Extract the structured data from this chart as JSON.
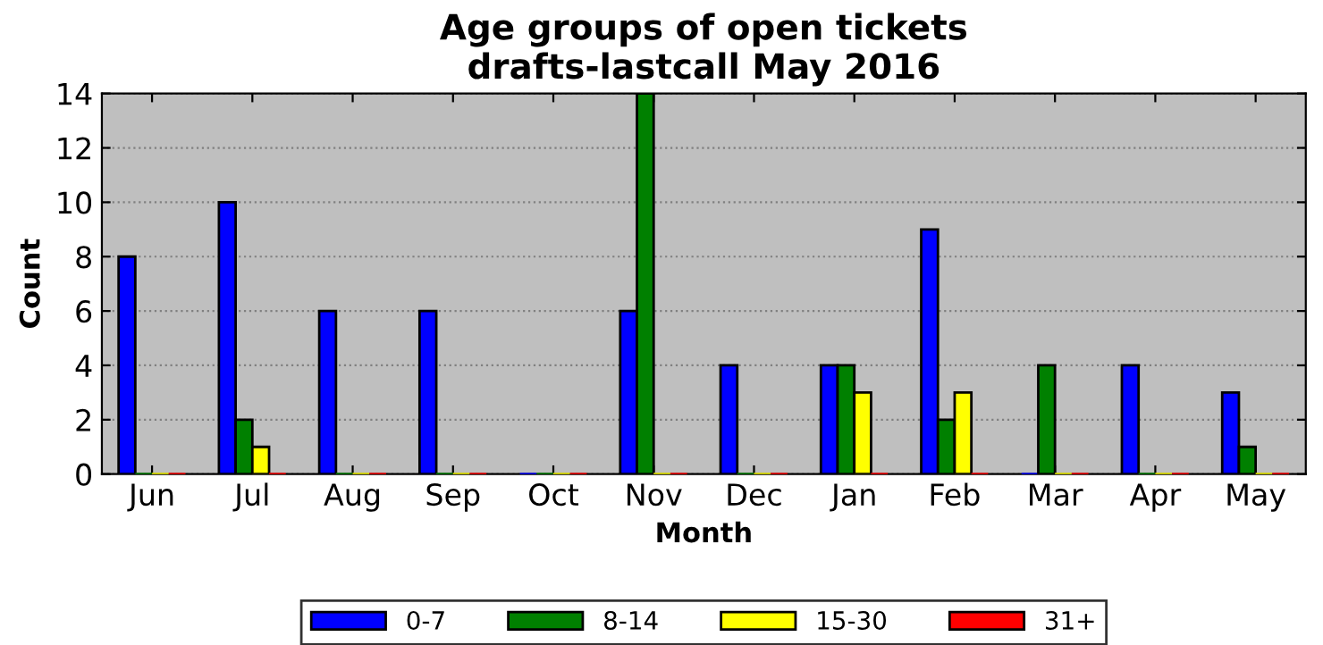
{
  "chart_data": {
    "type": "bar",
    "title": "Age groups of open tickets\ndrafts-lastcall May 2016",
    "xlabel": "Month",
    "ylabel": "Count",
    "categories": [
      "Jun",
      "Jul",
      "Aug",
      "Sep",
      "Oct",
      "Nov",
      "Dec",
      "Jan",
      "Feb",
      "Mar",
      "Apr",
      "May"
    ],
    "series": [
      {
        "name": "0-7",
        "color": "#0000ff",
        "values": [
          8,
          10,
          6,
          6,
          0,
          6,
          4,
          4,
          9,
          0,
          4,
          3
        ]
      },
      {
        "name": "8-14",
        "color": "#008000",
        "values": [
          0,
          2,
          0,
          0,
          0,
          14,
          0,
          4,
          2,
          4,
          0,
          1
        ]
      },
      {
        "name": "15-30",
        "color": "#ffff00",
        "values": [
          0,
          1,
          0,
          0,
          0,
          0,
          0,
          3,
          3,
          0,
          0,
          0
        ]
      },
      {
        "name": "31+",
        "color": "#ff0000",
        "values": [
          0,
          0,
          0,
          0,
          0,
          0,
          0,
          0,
          0,
          0,
          0,
          0
        ]
      }
    ],
    "ylim": [
      0,
      14
    ],
    "yticks": [
      0,
      2,
      4,
      6,
      8,
      10,
      12,
      14
    ],
    "grid": "y",
    "legend": "bottom"
  }
}
